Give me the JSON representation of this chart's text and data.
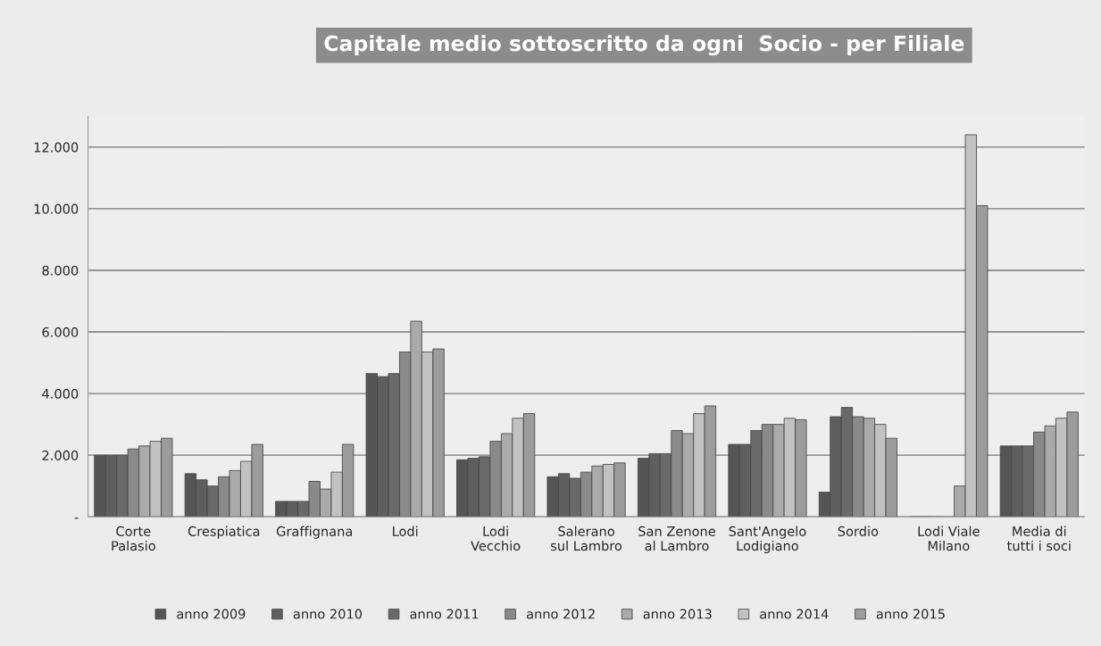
{
  "chart_data": {
    "type": "bar",
    "title": "Capitale medio sottoscritto da ogni  Socio - per Filiale",
    "categories": [
      "Corte\nPalasio",
      "Crespiatica",
      "Graffignana",
      "Lodi",
      "Lodi\nVecchio",
      "Salerano\nsul Lambro",
      "San Zenone\nal Lambro",
      "Sant'Angelo\nLodigiano",
      "Sordio",
      "Lodi Viale\nMilano",
      "Media di\ntutti i soci"
    ],
    "series": [
      {
        "name": "anno 2009",
        "color": "#555555",
        "values": [
          2000,
          1400,
          500,
          4650,
          1850,
          1300,
          1900,
          2350,
          800,
          0,
          2300
        ]
      },
      {
        "name": "anno 2010",
        "color": "#5e5e5e",
        "values": [
          2000,
          1200,
          500,
          4550,
          1900,
          1400,
          2050,
          2350,
          3250,
          0,
          2300
        ]
      },
      {
        "name": "anno 2011",
        "color": "#696969",
        "values": [
          2000,
          1000,
          500,
          4650,
          1950,
          1250,
          2050,
          2800,
          3550,
          0,
          2300
        ]
      },
      {
        "name": "anno 2012",
        "color": "#8a8a8a",
        "values": [
          2200,
          1300,
          1150,
          5350,
          2450,
          1450,
          2800,
          3000,
          3250,
          0,
          2750
        ]
      },
      {
        "name": "anno 2013",
        "color": "#aaaaaa",
        "values": [
          2300,
          1500,
          900,
          6350,
          2700,
          1650,
          2700,
          3000,
          3200,
          1000,
          2950
        ]
      },
      {
        "name": "anno 2014",
        "color": "#c2c2c2",
        "values": [
          2450,
          1800,
          1450,
          5350,
          3200,
          1700,
          3350,
          3200,
          3000,
          12400,
          3200
        ]
      },
      {
        "name": "anno 2015",
        "color": "#9c9c9c",
        "values": [
          2550,
          2350,
          2350,
          5450,
          3350,
          1750,
          3600,
          3150,
          2550,
          10100,
          3400
        ]
      }
    ],
    "ylim": [
      0,
      13000
    ],
    "yticks": [
      {
        "value": 0,
        "label": "-"
      },
      {
        "value": 2000,
        "label": "2.000"
      },
      {
        "value": 4000,
        "label": "4.000"
      },
      {
        "value": 6000,
        "label": "6.000"
      },
      {
        "value": 8000,
        "label": "8.000"
      },
      {
        "value": 10000,
        "label": "10.000"
      },
      {
        "value": 12000,
        "label": "12.000"
      }
    ],
    "grid": "y",
    "legend": "bottom"
  }
}
